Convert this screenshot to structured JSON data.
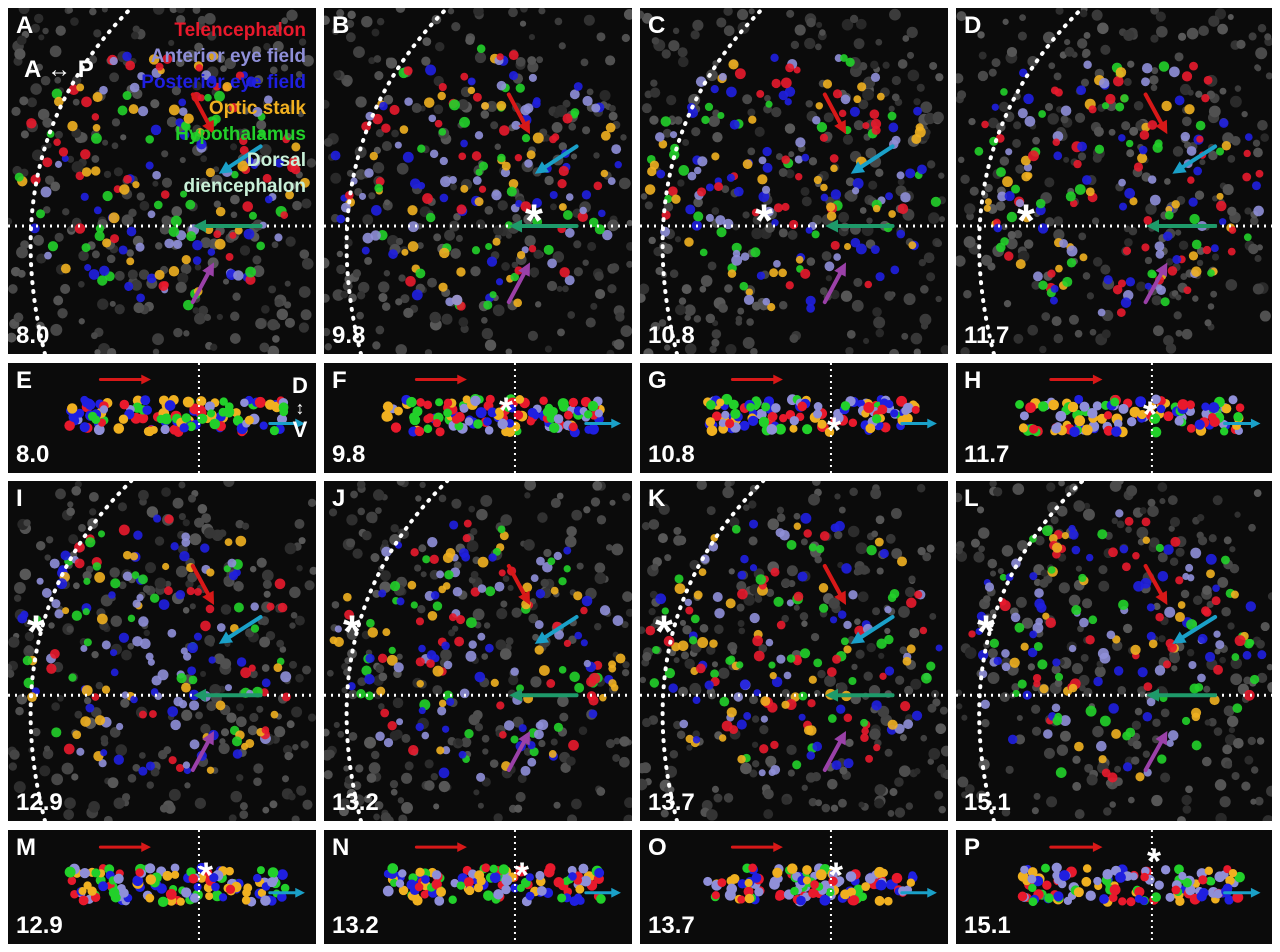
{
  "panels": [
    {
      "letter": "A",
      "time": "8.0"
    },
    {
      "letter": "B",
      "time": "9.8"
    },
    {
      "letter": "C",
      "time": "10.8"
    },
    {
      "letter": "D",
      "time": "11.7"
    },
    {
      "letter": "E",
      "time": "8.0"
    },
    {
      "letter": "F",
      "time": "9.8"
    },
    {
      "letter": "G",
      "time": "10.8"
    },
    {
      "letter": "H",
      "time": "11.7"
    },
    {
      "letter": "I",
      "time": "12.9"
    },
    {
      "letter": "J",
      "time": "13.2"
    },
    {
      "letter": "K",
      "time": "13.7"
    },
    {
      "letter": "L",
      "time": "15.1"
    },
    {
      "letter": "M",
      "time": "12.9"
    },
    {
      "letter": "N",
      "time": "13.2"
    },
    {
      "letter": "O",
      "time": "13.7"
    },
    {
      "letter": "P",
      "time": "15.1"
    }
  ],
  "legend": [
    {
      "label": "Telencephalon",
      "color": "#e8192c"
    },
    {
      "label": "Anterior eye field",
      "color": "#8f8fd8"
    },
    {
      "label": "Posterior eye field",
      "color": "#1f1fe0"
    },
    {
      "label": "Optic stalk",
      "color": "#f0b020"
    },
    {
      "label": "Hypothalamus",
      "color": "#22d02a"
    },
    {
      "label": "Dorsal",
      "color": "#c8f0d8"
    },
    {
      "label": "diencephalon",
      "color": "#c8f0d8"
    }
  ],
  "axes": {
    "ap_left": "A",
    "ap_arrow": "↔",
    "ap_right": "P",
    "dv_top": "D",
    "dv_arrow": "↕",
    "dv_bottom": "V"
  },
  "star_symbol": "*",
  "colors": {
    "background": "#0b0b0b",
    "arrow_cyan": "#1aa0c8",
    "arrow_green": "#1e9a6a",
    "arrow_orange": "#f07010",
    "arrow_purple": "#9a40a8",
    "arrow_red": "#d81818"
  }
}
